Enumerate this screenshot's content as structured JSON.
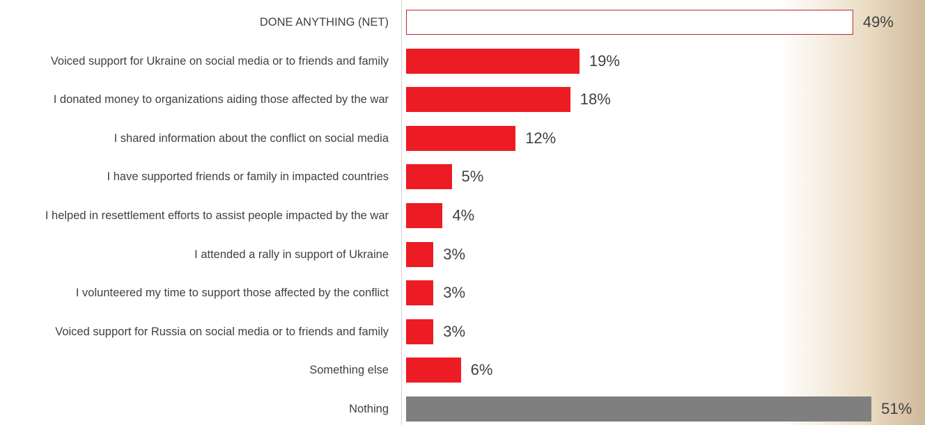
{
  "chart_data": {
    "type": "barh",
    "categories": [
      "DONE ANYTHING (NET)",
      "Voiced support for Ukraine on social media or to friends and family",
      "I donated money to organizations aiding those affected by the war",
      "I shared information about the conflict on social media",
      "I have supported friends or family in impacted countries",
      "I helped in resettlement efforts to assist people impacted by the war",
      "I attended a rally in support of Ukraine",
      "I volunteered my time to support those affected by the conflict",
      "Voiced support for Russia on social media or to friends and family",
      "Something else",
      "Nothing"
    ],
    "values": [
      49,
      19,
      18,
      12,
      5,
      4,
      3,
      3,
      3,
      6,
      51
    ],
    "value_labels": [
      "49%",
      "19%",
      "18%",
      "12%",
      "5%",
      "4%",
      "3%",
      "3%",
      "3%",
      "6%",
      "51%"
    ],
    "colors": [
      "#ffffff",
      "#ed1c24",
      "#ed1c24",
      "#ed1c24",
      "#ed1c24",
      "#ed1c24",
      "#ed1c24",
      "#ed1c24",
      "#ed1c24",
      "#ed1c24",
      "#7f7f7f"
    ],
    "edge_colors": [
      "#c0262d",
      "#ed1c24",
      "#ed1c24",
      "#ed1c24",
      "#ed1c24",
      "#ed1c24",
      "#ed1c24",
      "#ed1c24",
      "#ed1c24",
      "#ed1c24",
      "#7f7f7f"
    ]
  }
}
